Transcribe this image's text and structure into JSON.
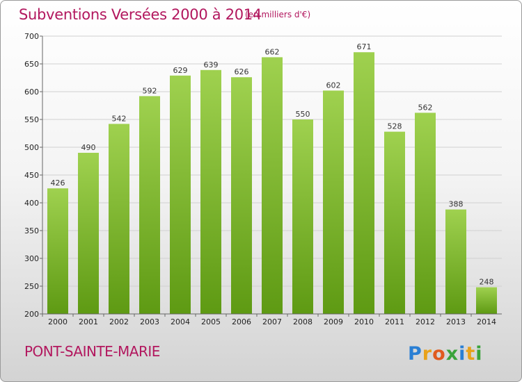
{
  "title": "Subventions Versées 2000 à 2014",
  "subtitle": "(en milliers d'€)",
  "town": "PONT-SAINTE-MARIE",
  "logo_text": "Proxiti",
  "colors": {
    "title": "#b2175e",
    "bar_top": "#9fd14f",
    "bar_bottom": "#5e9a13",
    "grid": "#d0d0d0"
  },
  "chart_data": {
    "type": "bar",
    "categories": [
      "2000",
      "2001",
      "2002",
      "2003",
      "2004",
      "2005",
      "2006",
      "2007",
      "2008",
      "2009",
      "2010",
      "2011",
      "2012",
      "2013",
      "2014"
    ],
    "values": [
      426,
      490,
      542,
      592,
      629,
      639,
      626,
      662,
      550,
      602,
      671,
      528,
      562,
      388,
      248
    ],
    "ylim": [
      200,
      700
    ],
    "yticks": [
      200,
      250,
      300,
      350,
      400,
      450,
      500,
      550,
      600,
      650,
      700
    ],
    "grid": true,
    "title": "Subventions Versées 2000 à 2014",
    "xlabel": "",
    "ylabel": ""
  }
}
